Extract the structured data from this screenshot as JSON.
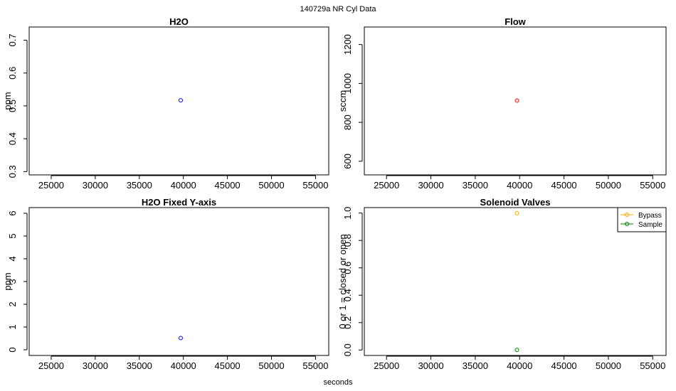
{
  "page": {
    "title": "140729a   NR   Cyl Data",
    "xlabel": "seconds"
  },
  "chart_data": [
    {
      "type": "scatter",
      "title": "H2O",
      "xlabel": "",
      "ylabel": "ppm",
      "xlim": [
        22500,
        56500
      ],
      "ylim": [
        0.29,
        0.74
      ],
      "xticks": [
        25000,
        30000,
        35000,
        40000,
        45000,
        50000,
        55000
      ],
      "yticks": [
        0.3,
        0.4,
        0.5,
        0.6,
        0.7
      ],
      "grid": false,
      "series": [
        {
          "name": "",
          "color": "#0000ff",
          "points": [
            [
              39700,
              0.517
            ]
          ]
        }
      ]
    },
    {
      "type": "scatter",
      "title": "Flow",
      "xlabel": "",
      "ylabel": "sccm",
      "xlim": [
        22500,
        56500
      ],
      "ylim": [
        530,
        1290
      ],
      "xticks": [
        25000,
        30000,
        35000,
        40000,
        45000,
        50000,
        55000
      ],
      "yticks": [
        600,
        800,
        1000,
        1200
      ],
      "grid": false,
      "series": [
        {
          "name": "",
          "color": "#ff0000",
          "points": [
            [
              39700,
              912
            ]
          ]
        }
      ]
    },
    {
      "type": "scatter",
      "title": "H2O Fixed Y-axis",
      "xlabel": "",
      "ylabel": "ppm",
      "xlim": [
        22500,
        56500
      ],
      "ylim": [
        -0.25,
        6.25
      ],
      "xticks": [
        25000,
        30000,
        35000,
        40000,
        45000,
        50000,
        55000
      ],
      "yticks": [
        0,
        1,
        2,
        3,
        4,
        5,
        6
      ],
      "grid": false,
      "series": [
        {
          "name": "",
          "color": "#0000ff",
          "points": [
            [
              39700,
              0.517
            ]
          ]
        }
      ]
    },
    {
      "type": "scatter",
      "title": "Solenoid Valves",
      "xlabel": "",
      "ylabel": "0 or 1 = closed or open",
      "xlim": [
        22500,
        56500
      ],
      "ylim": [
        -0.04,
        1.04
      ],
      "xticks": [
        25000,
        30000,
        35000,
        40000,
        45000,
        50000,
        55000
      ],
      "yticks": [
        0.0,
        0.2,
        0.4,
        0.6,
        0.8,
        1.0
      ],
      "ytick_decimals": 1,
      "grid": false,
      "legend": "top-right",
      "series": [
        {
          "name": "Bypass",
          "color": "#ffa500",
          "points": [
            [
              39700,
              1.0
            ]
          ]
        },
        {
          "name": "Sample",
          "color": "#008000",
          "points": [
            [
              39700,
              0.0
            ]
          ]
        }
      ]
    }
  ]
}
